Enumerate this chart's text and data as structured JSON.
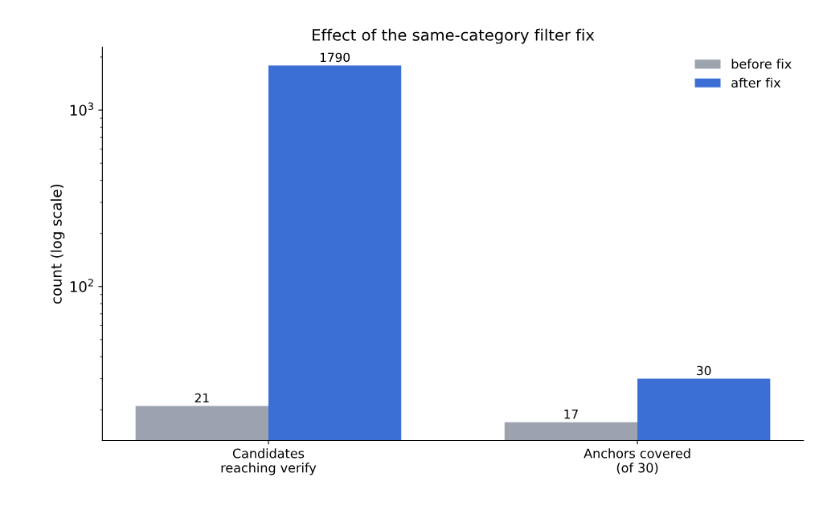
{
  "chart_data": {
    "type": "bar",
    "title": "Effect of the same-category filter fix",
    "ylabel": "count (log scale)",
    "categories": [
      "Candidates\nreaching verify",
      "Anchors covered\n(of 30)"
    ],
    "series": [
      {
        "name": "before fix",
        "color": "#9ca3af",
        "values": [
          21,
          17
        ]
      },
      {
        "name": "after fix",
        "color": "#3b6fd6",
        "values": [
          1790,
          30
        ]
      }
    ],
    "log": "y",
    "ylim": [
      13.4,
      2270
    ],
    "yticks": [
      {
        "value": 100,
        "label": "10$^{2}$"
      },
      {
        "value": 1000,
        "label": "10$^{3}$"
      }
    ],
    "data_labels": true,
    "legend": "top right",
    "grid": false
  }
}
